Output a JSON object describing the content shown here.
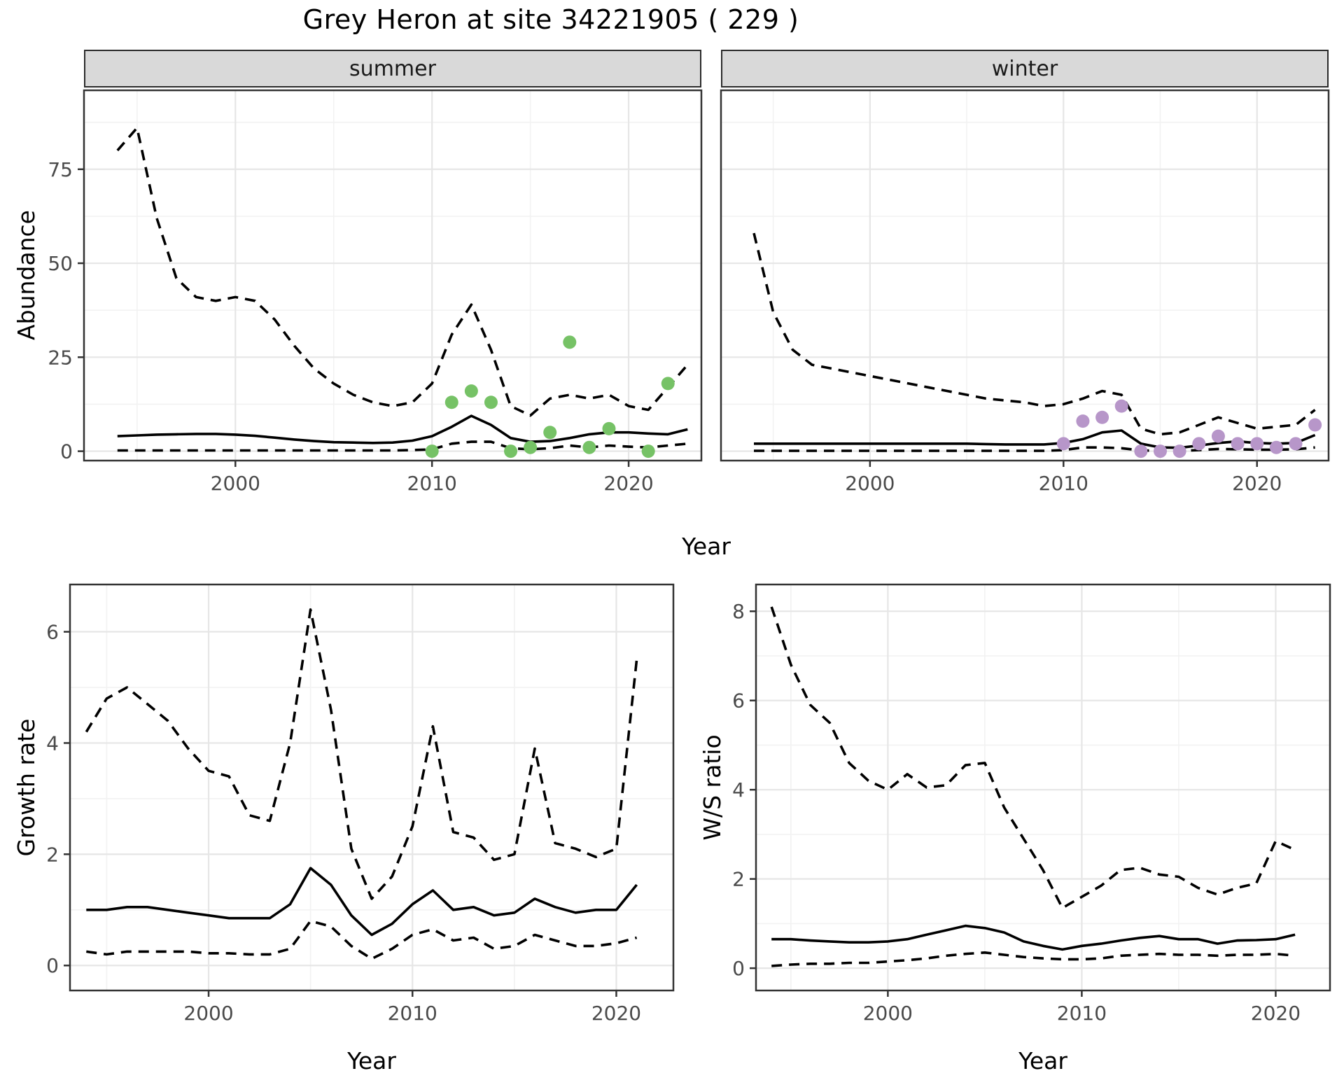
{
  "title": "Grey Heron at site 34221905 ( 229 )",
  "colors": {
    "summer_points": "#76C266",
    "winter_points": "#B796C9",
    "line": "#000000",
    "panel_border": "#333333",
    "grid_major": "#E6E6E6",
    "grid_minor": "#F2F2F2",
    "strip_bg": "#D9D9D9",
    "strip_text": "#1A1A1A",
    "tick_text": "#4A4A4A",
    "axis_title": "#000000"
  },
  "chart_data": [
    {
      "id": "abundance-summer",
      "type": "line",
      "strip_label": "summer",
      "xlabel": "Year",
      "ylabel": "Abundance",
      "x_ticks": [
        2000,
        2010,
        2020
      ],
      "y_ticks": [
        0,
        25,
        50,
        75
      ],
      "xlim": [
        1992.3,
        2023.7
      ],
      "ylim": [
        -2.5,
        96
      ],
      "grid": true,
      "years": [
        1994,
        1995,
        1996,
        1997,
        1998,
        1999,
        2000,
        2001,
        2002,
        2003,
        2004,
        2005,
        2006,
        2007,
        2008,
        2009,
        2010,
        2011,
        2012,
        2013,
        2014,
        2015,
        2016,
        2017,
        2018,
        2019,
        2020,
        2021,
        2022,
        2023
      ],
      "series": [
        {
          "name": "upper-ci",
          "style": "dashed",
          "values": [
            80,
            86,
            62,
            46,
            41,
            40,
            41,
            40,
            35,
            28,
            22,
            18,
            15,
            13,
            12,
            13,
            18,
            31,
            39,
            27,
            12,
            9.5,
            14,
            15,
            14,
            15,
            12,
            11,
            17,
            23
          ]
        },
        {
          "name": "estimate",
          "style": "solid",
          "values": [
            4,
            4.2,
            4.4,
            4.5,
            4.6,
            4.6,
            4.4,
            4.1,
            3.6,
            3.1,
            2.7,
            2.4,
            2.3,
            2.2,
            2.3,
            2.8,
            4,
            6.5,
            9.4,
            7,
            3.5,
            2.5,
            2.7,
            3.5,
            4.5,
            5,
            5,
            4.7,
            4.5,
            5.8
          ]
        },
        {
          "name": "lower-ci",
          "style": "dashed",
          "values": [
            0.2,
            0.2,
            0.2,
            0.2,
            0.2,
            0.2,
            0.2,
            0.2,
            0.2,
            0.2,
            0.2,
            0.2,
            0.2,
            0.2,
            0.2,
            0.3,
            0.5,
            2,
            2.5,
            2.5,
            0.8,
            0.5,
            0.8,
            1.5,
            1,
            1.5,
            1.2,
            1,
            1.5,
            2
          ]
        }
      ],
      "points": {
        "name": "observed-counts",
        "color_key": "summer_points",
        "data": [
          [
            2010,
            0
          ],
          [
            2011,
            13
          ],
          [
            2012,
            16
          ],
          [
            2013,
            13
          ],
          [
            2014,
            0
          ],
          [
            2015,
            1
          ],
          [
            2016,
            5
          ],
          [
            2017,
            29
          ],
          [
            2018,
            1
          ],
          [
            2019,
            6
          ],
          [
            2021,
            0
          ],
          [
            2022,
            18
          ]
        ]
      }
    },
    {
      "id": "abundance-winter",
      "type": "line",
      "strip_label": "winter",
      "xlabel": "Year",
      "ylabel": "Abundance",
      "x_ticks": [
        2000,
        2010,
        2020
      ],
      "y_ticks": [
        0,
        25,
        50,
        75
      ],
      "xlim": [
        1992.3,
        2023.7
      ],
      "ylim": [
        -2.5,
        96
      ],
      "grid": true,
      "years": [
        1994,
        1995,
        1996,
        1997,
        1998,
        1999,
        2000,
        2001,
        2002,
        2003,
        2004,
        2005,
        2006,
        2007,
        2008,
        2009,
        2010,
        2011,
        2012,
        2013,
        2014,
        2015,
        2016,
        2017,
        2018,
        2019,
        2020,
        2021,
        2022,
        2023
      ],
      "series": [
        {
          "name": "upper-ci",
          "style": "dashed",
          "values": [
            58,
            37,
            27,
            23,
            22,
            21,
            20,
            19,
            18,
            17,
            16,
            15,
            14,
            13.5,
            13,
            12,
            12.5,
            14,
            16,
            15,
            6,
            4.5,
            5,
            7,
            9,
            7.5,
            6,
            6.5,
            7,
            11
          ]
        },
        {
          "name": "estimate",
          "style": "solid",
          "values": [
            2,
            2,
            2,
            2,
            2,
            2,
            2,
            2,
            2,
            2,
            2,
            2,
            1.9,
            1.8,
            1.8,
            1.8,
            2.2,
            3.2,
            5,
            5.5,
            2,
            1,
            0.9,
            1.5,
            2.2,
            2.6,
            2.2,
            2,
            2.2,
            4.3
          ]
        },
        {
          "name": "lower-ci",
          "style": "dashed",
          "values": [
            0.1,
            0.1,
            0.1,
            0.1,
            0.1,
            0.1,
            0.1,
            0.1,
            0.1,
            0.1,
            0.1,
            0.1,
            0.1,
            0.1,
            0.1,
            0.1,
            0.3,
            1,
            1,
            0.8,
            0.2,
            0.1,
            0.1,
            0.3,
            0.6,
            0.5,
            0.4,
            0.4,
            0.5,
            1
          ]
        }
      ],
      "points": {
        "name": "observed-counts",
        "color_key": "winter_points",
        "data": [
          [
            2010,
            2
          ],
          [
            2011,
            8
          ],
          [
            2012,
            9
          ],
          [
            2013,
            12
          ],
          [
            2014,
            0
          ],
          [
            2015,
            0
          ],
          [
            2016,
            0
          ],
          [
            2017,
            2
          ],
          [
            2018,
            4
          ],
          [
            2019,
            2
          ],
          [
            2020,
            2
          ],
          [
            2021,
            1
          ],
          [
            2022,
            2
          ],
          [
            2023,
            7
          ]
        ]
      }
    },
    {
      "id": "growth-rate",
      "type": "line",
      "strip_label": "",
      "xlabel": "Year",
      "ylabel": "Growth rate",
      "x_ticks": [
        2000,
        2010,
        2020
      ],
      "y_ticks": [
        0,
        2,
        4,
        6
      ],
      "xlim": [
        1993.2,
        2022.8
      ],
      "ylim": [
        -0.45,
        6.85
      ],
      "grid": true,
      "years": [
        1994,
        1995,
        1996,
        1997,
        1998,
        1999,
        2000,
        2001,
        2002,
        2003,
        2004,
        2005,
        2006,
        2007,
        2008,
        2009,
        2010,
        2011,
        2012,
        2013,
        2014,
        2015,
        2016,
        2017,
        2018,
        2019,
        2020,
        2021
      ],
      "series": [
        {
          "name": "upper-ci",
          "style": "dashed",
          "values": [
            4.2,
            4.8,
            5,
            4.7,
            4.4,
            3.9,
            3.5,
            3.4,
            2.7,
            2.6,
            4,
            6.4,
            4.6,
            2.1,
            1.2,
            1.6,
            2.5,
            4.3,
            2.4,
            2.3,
            1.9,
            2,
            3.9,
            2.2,
            2.1,
            1.95,
            2.1,
            5.5
          ]
        },
        {
          "name": "estimate",
          "style": "solid",
          "values": [
            1,
            1,
            1.05,
            1.05,
            1,
            0.95,
            0.9,
            0.85,
            0.85,
            0.85,
            1.1,
            1.75,
            1.45,
            0.9,
            0.55,
            0.75,
            1.1,
            1.35,
            1,
            1.05,
            0.9,
            0.95,
            1.2,
            1.05,
            0.95,
            1,
            1,
            1.45
          ]
        },
        {
          "name": "lower-ci",
          "style": "dashed",
          "values": [
            0.25,
            0.2,
            0.25,
            0.25,
            0.25,
            0.25,
            0.22,
            0.22,
            0.2,
            0.2,
            0.3,
            0.8,
            0.7,
            0.35,
            0.12,
            0.3,
            0.55,
            0.65,
            0.45,
            0.5,
            0.3,
            0.35,
            0.55,
            0.45,
            0.35,
            0.35,
            0.4,
            0.5
          ]
        }
      ],
      "points": {
        "name": "none",
        "color_key": "summer_points",
        "data": []
      }
    },
    {
      "id": "ws-ratio",
      "type": "line",
      "strip_label": "",
      "xlabel": "Year",
      "ylabel": "W/S ratio",
      "x_ticks": [
        2000,
        2010,
        2020
      ],
      "y_ticks": [
        0,
        2,
        4,
        6,
        8
      ],
      "xlim": [
        1993.2,
        2022.8
      ],
      "ylim": [
        -0.5,
        8.6
      ],
      "grid": true,
      "years": [
        1994,
        1995,
        1996,
        1997,
        1998,
        1999,
        2000,
        2001,
        2002,
        2003,
        2004,
        2005,
        2006,
        2007,
        2008,
        2009,
        2010,
        2011,
        2012,
        2013,
        2014,
        2015,
        2016,
        2017,
        2018,
        2019,
        2020,
        2021
      ],
      "series": [
        {
          "name": "upper-ci",
          "style": "dashed",
          "values": [
            8.1,
            6.8,
            5.9,
            5.5,
            4.6,
            4.2,
            4,
            4.35,
            4.05,
            4.1,
            4.55,
            4.6,
            3.6,
            2.9,
            2.2,
            1.35,
            1.6,
            1.85,
            2.2,
            2.25,
            2.1,
            2.05,
            1.8,
            1.65,
            1.8,
            1.9,
            2.85,
            2.65
          ]
        },
        {
          "name": "estimate",
          "style": "solid",
          "values": [
            0.65,
            0.65,
            0.62,
            0.6,
            0.58,
            0.58,
            0.6,
            0.65,
            0.75,
            0.85,
            0.95,
            0.9,
            0.8,
            0.6,
            0.5,
            0.42,
            0.5,
            0.55,
            0.62,
            0.68,
            0.72,
            0.65,
            0.65,
            0.55,
            0.62,
            0.63,
            0.65,
            0.75
          ]
        },
        {
          "name": "lower-ci",
          "style": "dashed",
          "values": [
            0.05,
            0.08,
            0.1,
            0.1,
            0.12,
            0.12,
            0.15,
            0.18,
            0.22,
            0.28,
            0.32,
            0.35,
            0.3,
            0.25,
            0.22,
            0.2,
            0.2,
            0.22,
            0.28,
            0.3,
            0.32,
            0.3,
            0.3,
            0.28,
            0.3,
            0.3,
            0.32,
            0.28
          ]
        }
      ],
      "points": {
        "name": "none",
        "color_key": "winter_points",
        "data": []
      }
    }
  ]
}
